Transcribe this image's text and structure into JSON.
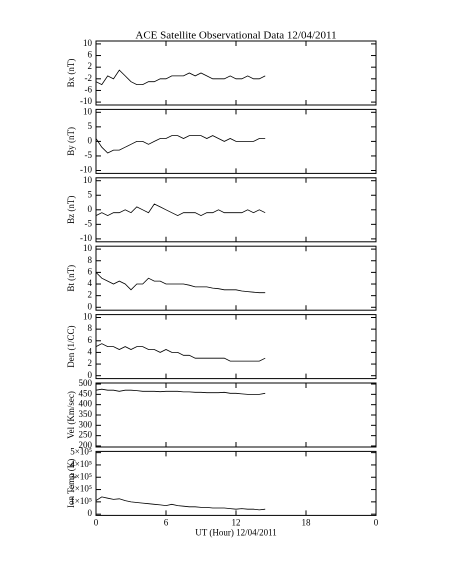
{
  "chart_data": [
    {
      "type": "line",
      "title": "ACE Satellite Observational Data   12/04/2011",
      "ylabel": "Bx (nT)",
      "x": [
        0,
        0.5,
        1,
        1.5,
        2,
        2.5,
        3,
        3.5,
        4,
        4.5,
        5,
        5.5,
        6,
        6.5,
        7,
        7.5,
        8,
        8.5,
        9,
        9.5,
        10,
        10.5,
        11,
        11.5,
        12,
        12.5,
        13,
        13.5,
        14,
        14.5
      ],
      "series": [
        {
          "color": "#000000",
          "values": [
            -3,
            -4,
            -1,
            -2,
            1,
            -1,
            -3,
            -4,
            -4,
            -3,
            -3,
            -2,
            -2,
            -1,
            -1,
            -1,
            0,
            -1,
            0,
            -1,
            -2,
            -2,
            -2,
            -1,
            -2,
            -2,
            -1,
            -2,
            -2,
            -1
          ]
        }
      ],
      "ylim": [
        -11,
        11
      ],
      "yticks": [
        10,
        6,
        2,
        -2,
        -6,
        -10
      ]
    },
    {
      "type": "line",
      "ylabel": "By (nT)",
      "x": [
        0,
        0.5,
        1,
        1.5,
        2,
        2.5,
        3,
        3.5,
        4,
        4.5,
        5,
        5.5,
        6,
        6.5,
        7,
        7.5,
        8,
        8.5,
        9,
        9.5,
        10,
        10.5,
        11,
        11.5,
        12,
        12.5,
        13,
        13.5,
        14,
        14.5
      ],
      "series": [
        {
          "color": "#000000",
          "values": [
            1,
            -2,
            -4,
            -3,
            -3,
            -2,
            -1,
            0,
            0,
            -1,
            0,
            1,
            1,
            2,
            2,
            1,
            2,
            2,
            2,
            1,
            2,
            1,
            0,
            1,
            0,
            0,
            0,
            0,
            1,
            1
          ]
        }
      ],
      "ylim": [
        -11,
        11
      ],
      "yticks": [
        10,
        5,
        0,
        -5,
        -10
      ]
    },
    {
      "type": "line",
      "ylabel": "Bz (nT)",
      "x": [
        0,
        0.5,
        1,
        1.5,
        2,
        2.5,
        3,
        3.5,
        4,
        4.5,
        5,
        5.5,
        6,
        6.5,
        7,
        7.5,
        8,
        8.5,
        9,
        9.5,
        10,
        10.5,
        11,
        11.5,
        12,
        12.5,
        13,
        13.5,
        14,
        14.5
      ],
      "series": [
        {
          "color": "#000000",
          "values": [
            -2,
            -1,
            -2,
            -1,
            -1,
            0,
            -1,
            1,
            0,
            -1,
            2,
            1,
            0,
            -1,
            -2,
            -1,
            -1,
            -1,
            -2,
            -1,
            -1,
            0,
            -1,
            -1,
            -1,
            -1,
            0,
            -1,
            0,
            -1
          ]
        }
      ],
      "ylim": [
        -11,
        11
      ],
      "yticks": [
        10,
        5,
        0,
        -5,
        -10
      ]
    },
    {
      "type": "line",
      "ylabel": "Bt (nT)",
      "x": [
        0,
        0.5,
        1,
        1.5,
        2,
        2.5,
        3,
        3.5,
        4,
        4.5,
        5,
        5.5,
        6,
        6.5,
        7,
        7.5,
        8,
        8.5,
        9,
        9.5,
        10,
        10.5,
        11,
        11.5,
        12,
        12.5,
        13,
        13.5,
        14,
        14.5
      ],
      "series": [
        {
          "color": "#000000",
          "values": [
            6,
            5,
            4.5,
            4,
            4.5,
            4,
            3,
            4,
            4,
            5,
            4.5,
            4.5,
            4,
            4,
            4,
            4,
            3.8,
            3.5,
            3.5,
            3.5,
            3.3,
            3.2,
            3,
            3,
            3,
            2.8,
            2.7,
            2.6,
            2.5,
            2.5
          ]
        }
      ],
      "ylim": [
        -0.5,
        10.5
      ],
      "yticks": [
        10,
        8,
        6,
        4,
        2,
        0
      ]
    },
    {
      "type": "line",
      "ylabel": "Den (1/CC)",
      "x": [
        0,
        0.5,
        1,
        1.5,
        2,
        2.5,
        3,
        3.5,
        4,
        4.5,
        5,
        5.5,
        6,
        6.5,
        7,
        7.5,
        8,
        8.5,
        9,
        9.5,
        10,
        10.5,
        11,
        11.5,
        12,
        12.5,
        13,
        13.5,
        14,
        14.5
      ],
      "series": [
        {
          "color": "#000000",
          "values": [
            5,
            5.5,
            5,
            5,
            4.5,
            5,
            4.5,
            5,
            5,
            4.5,
            4.5,
            4,
            4.5,
            4,
            4,
            3.5,
            3.5,
            3,
            3,
            3,
            3,
            3,
            3,
            2.5,
            2.5,
            2.5,
            2.5,
            2.5,
            2.5,
            3
          ]
        }
      ],
      "ylim": [
        -0.5,
        10.5
      ],
      "yticks": [
        10,
        8,
        6,
        4,
        2,
        0
      ]
    },
    {
      "type": "line",
      "ylabel": "Vel (Km/sec)",
      "x": [
        0,
        0.5,
        1,
        1.5,
        2,
        2.5,
        3,
        3.5,
        4,
        4.5,
        5,
        5.5,
        6,
        6.5,
        7,
        7.5,
        8,
        8.5,
        9,
        9.5,
        10,
        10.5,
        11,
        11.5,
        12,
        12.5,
        13,
        13.5,
        14,
        14.5
      ],
      "series": [
        {
          "color": "#000000",
          "values": [
            470,
            475,
            470,
            470,
            465,
            470,
            470,
            468,
            465,
            465,
            465,
            463,
            465,
            465,
            465,
            462,
            462,
            460,
            460,
            458,
            458,
            458,
            460,
            455,
            455,
            452,
            450,
            450,
            450,
            455
          ]
        }
      ],
      "ylim": [
        195,
        505
      ],
      "yticks": [
        500,
        450,
        400,
        350,
        300,
        250,
        200
      ]
    },
    {
      "type": "line",
      "ylabel": "Ion Temp (K)",
      "xlabel": "UT (Hour)  12/04/2011",
      "x": [
        0,
        0.5,
        1,
        1.5,
        2,
        2.5,
        3,
        3.5,
        4,
        4.5,
        5,
        5.5,
        6,
        6.5,
        7,
        7.5,
        8,
        8.5,
        9,
        9.5,
        10,
        10.5,
        11,
        11.5,
        12,
        12.5,
        13,
        13.5,
        14,
        14.5
      ],
      "series": [
        {
          "color": "#000000",
          "values": [
            110000,
            140000,
            130000,
            120000,
            125000,
            110000,
            100000,
            95000,
            90000,
            85000,
            80000,
            75000,
            70000,
            80000,
            70000,
            65000,
            60000,
            60000,
            55000,
            55000,
            50000,
            50000,
            50000,
            45000,
            40000,
            45000,
            40000,
            40000,
            35000,
            40000
          ]
        }
      ],
      "ylim": [
        -10000,
        510000
      ],
      "yticks": [
        {
          "value": 500000,
          "label": "5×10⁵"
        },
        {
          "value": 400000,
          "label": "4×10⁵"
        },
        {
          "value": 300000,
          "label": "3×10⁵"
        },
        {
          "value": 200000,
          "label": "2×10⁵"
        },
        {
          "value": 100000,
          "label": "1×10⁵"
        },
        0
      ],
      "xlim": [
        0,
        24
      ],
      "xticks": [
        0,
        6,
        12,
        18,
        {
          "value": 24,
          "label": "0"
        }
      ]
    }
  ]
}
